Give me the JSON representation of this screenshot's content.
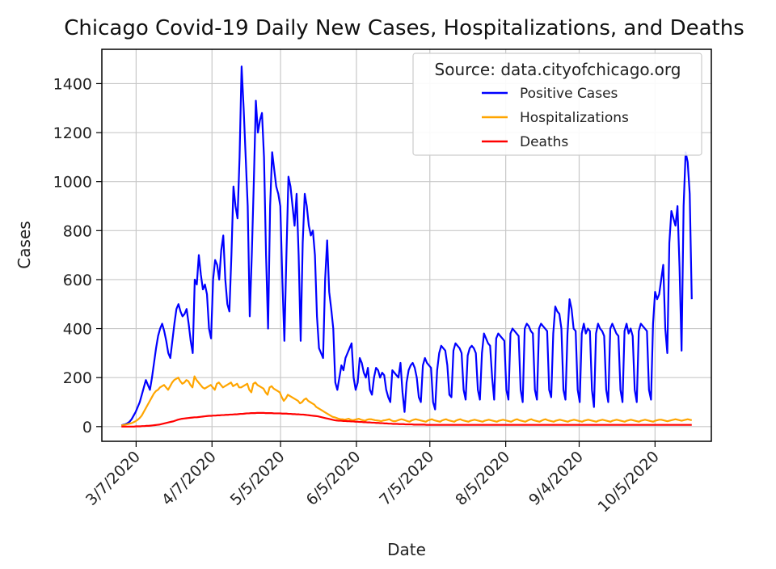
{
  "chart_data": {
    "type": "line",
    "title": "Chicago Covid-19 Daily New Cases, Hospitalizations, and Deaths",
    "xlabel": "Date",
    "ylabel": "Cases",
    "x_start": "3/1/2020",
    "x_end": "10/20/2020",
    "xlim": [
      "2/22/2020",
      "10/28/2020"
    ],
    "ylim": [
      -60,
      1540
    ],
    "xticks": [
      "3/7/2020",
      "4/7/2020",
      "5/5/2020",
      "6/5/2020",
      "7/5/2020",
      "8/5/2020",
      "9/4/2020",
      "10/5/2020"
    ],
    "yticks": [
      0,
      200,
      400,
      600,
      800,
      1000,
      1200,
      1400
    ],
    "grid": true,
    "legend": {
      "title": "Source: data.cityofchicago.org",
      "placement": "top-right"
    },
    "series": [
      {
        "name": "Positive Cases",
        "color": "#0000ff",
        "values": [
          5,
          8,
          10,
          14,
          20,
          30,
          45,
          60,
          80,
          100,
          130,
          160,
          190,
          170,
          150,
          200,
          260,
          320,
          370,
          400,
          420,
          390,
          350,
          300,
          280,
          350,
          420,
          480,
          500,
          470,
          450,
          460,
          480,
          420,
          350,
          300,
          600,
          580,
          700,
          620,
          560,
          580,
          540,
          400,
          360,
          600,
          680,
          660,
          600,
          720,
          780,
          600,
          500,
          470,
          700,
          980,
          900,
          850,
          1100,
          1470,
          1300,
          1100,
          900,
          450,
          700,
          1000,
          1330,
          1200,
          1250,
          1280,
          1100,
          700,
          400,
          900,
          1120,
          1050,
          980,
          950,
          900,
          600,
          350,
          700,
          1020,
          980,
          900,
          820,
          950,
          700,
          350,
          750,
          950,
          900,
          820,
          780,
          800,
          700,
          450,
          320,
          300,
          280,
          600,
          760,
          550,
          480,
          400,
          180,
          150,
          200,
          250,
          230,
          280,
          300,
          320,
          340,
          200,
          150,
          180,
          280,
          260,
          220,
          200,
          240,
          150,
          130,
          200,
          240,
          230,
          200,
          220,
          210,
          150,
          120,
          100,
          230,
          220,
          210,
          200,
          260,
          140,
          60,
          180,
          230,
          250,
          260,
          240,
          200,
          120,
          100,
          250,
          280,
          260,
          250,
          240,
          100,
          70,
          230,
          300,
          330,
          320,
          310,
          250,
          130,
          120,
          310,
          340,
          330,
          320,
          300,
          150,
          110,
          290,
          320,
          330,
          320,
          300,
          150,
          110,
          300,
          380,
          360,
          340,
          330,
          200,
          110,
          360,
          380,
          370,
          360,
          350,
          150,
          110,
          380,
          400,
          390,
          380,
          370,
          150,
          100,
          400,
          420,
          410,
          390,
          380,
          150,
          110,
          400,
          420,
          410,
          400,
          390,
          150,
          120,
          380,
          490,
          470,
          460,
          400,
          150,
          110,
          380,
          520,
          480,
          400,
          390,
          150,
          100,
          380,
          420,
          380,
          400,
          390,
          150,
          80,
          380,
          420,
          400,
          390,
          370,
          150,
          100,
          400,
          420,
          400,
          380,
          370,
          150,
          100,
          390,
          420,
          380,
          400,
          370,
          150,
          100,
          390,
          420,
          410,
          400,
          390,
          150,
          110,
          420,
          550,
          520,
          540,
          600,
          660,
          400,
          300,
          750,
          880,
          850,
          820,
          900,
          650,
          310,
          900,
          1120,
          1080,
          950,
          520
        ]
      },
      {
        "name": "Hospitalizations",
        "color": "#ffa500",
        "values": [
          5,
          6,
          8,
          10,
          12,
          14,
          18,
          22,
          28,
          35,
          45,
          60,
          75,
          90,
          105,
          120,
          135,
          145,
          150,
          160,
          165,
          170,
          160,
          150,
          165,
          180,
          190,
          195,
          200,
          185,
          175,
          180,
          190,
          185,
          170,
          160,
          205,
          190,
          180,
          170,
          160,
          155,
          160,
          165,
          170,
          160,
          150,
          175,
          180,
          170,
          160,
          165,
          170,
          175,
          180,
          165,
          170,
          175,
          160,
          160,
          165,
          170,
          175,
          150,
          140,
          175,
          180,
          170,
          165,
          160,
          155,
          140,
          130,
          160,
          165,
          155,
          150,
          145,
          140,
          120,
          105,
          115,
          130,
          125,
          120,
          115,
          110,
          105,
          95,
          100,
          110,
          115,
          105,
          100,
          95,
          90,
          80,
          75,
          70,
          65,
          60,
          55,
          50,
          45,
          40,
          38,
          35,
          32,
          30,
          30,
          28,
          30,
          32,
          28,
          26,
          28,
          30,
          32,
          28,
          26,
          24,
          28,
          30,
          30,
          28,
          26,
          25,
          24,
          22,
          25,
          26,
          28,
          30,
          25,
          22,
          22,
          25,
          28,
          30,
          28,
          25,
          22,
          20,
          25,
          28,
          30,
          28,
          26,
          24,
          22,
          20,
          25,
          28,
          30,
          26,
          24,
          22,
          20,
          25,
          28,
          30,
          26,
          24,
          22,
          20,
          25,
          28,
          30,
          26,
          24,
          22,
          20,
          24,
          26,
          28,
          26,
          24,
          22,
          20,
          24,
          26,
          28,
          26,
          24,
          22,
          20,
          24,
          26,
          28,
          26,
          24,
          22,
          20,
          24,
          28,
          30,
          26,
          24,
          22,
          20,
          24,
          28,
          30,
          26,
          24,
          22,
          20,
          24,
          28,
          30,
          26,
          24,
          22,
          20,
          24,
          26,
          28,
          26,
          24,
          22,
          20,
          24,
          26,
          28,
          26,
          24,
          22,
          20,
          24,
          26,
          28,
          26,
          24,
          22,
          20,
          24,
          26,
          28,
          26,
          24,
          22,
          20,
          24,
          26,
          28,
          26,
          24,
          22,
          20,
          24,
          26,
          28,
          26,
          24,
          22,
          20,
          24,
          26,
          28,
          26,
          24,
          22,
          20,
          24,
          26,
          28,
          28,
          26,
          24,
          22,
          24,
          26,
          28,
          30,
          28,
          26,
          24,
          26,
          28,
          30,
          28,
          26
        ]
      },
      {
        "name": "Deaths",
        "color": "#ff0000",
        "values": [
          0,
          0,
          0,
          0,
          0,
          0,
          0,
          1,
          1,
          1,
          2,
          2,
          3,
          3,
          4,
          5,
          6,
          7,
          8,
          10,
          12,
          14,
          16,
          18,
          20,
          22,
          25,
          28,
          30,
          32,
          33,
          34,
          35,
          36,
          37,
          38,
          38,
          39,
          40,
          41,
          42,
          43,
          44,
          44,
          45,
          45,
          46,
          46,
          47,
          47,
          48,
          48,
          49,
          49,
          50,
          50,
          51,
          52,
          52,
          53,
          54,
          54,
          55,
          55,
          55,
          56,
          56,
          56,
          56,
          55,
          55,
          55,
          55,
          54,
          54,
          54,
          54,
          53,
          53,
          53,
          52,
          52,
          51,
          51,
          50,
          50,
          49,
          49,
          48,
          47,
          46,
          45,
          44,
          43,
          42,
          40,
          38,
          36,
          34,
          32,
          30,
          28,
          26,
          25,
          24,
          24,
          23,
          23,
          22,
          22,
          21,
          21,
          20,
          20,
          19,
          19,
          18,
          18,
          17,
          17,
          16,
          16,
          15,
          15,
          14,
          14,
          13,
          13,
          12,
          12,
          11,
          11,
          11,
          10,
          10,
          10,
          9,
          9,
          9,
          9,
          8,
          8,
          8,
          8,
          8,
          8,
          7,
          7,
          7,
          7,
          7,
          7,
          7,
          7,
          7,
          7,
          7,
          7,
          7,
          7,
          7,
          7,
          7,
          7,
          7,
          7,
          7,
          7,
          7,
          7,
          7,
          7,
          7,
          7,
          7,
          7,
          7,
          7,
          7,
          7,
          7,
          7,
          7,
          7,
          7,
          7,
          7,
          7,
          7,
          7,
          7,
          7,
          7,
          7,
          7,
          7,
          7,
          7,
          7,
          7,
          7,
          7,
          7,
          7,
          7,
          7,
          7,
          7,
          7,
          7,
          7,
          7,
          7,
          7,
          7,
          7,
          7,
          7,
          7,
          7,
          7,
          7,
          7,
          7,
          7,
          7,
          7,
          7,
          7,
          7,
          7,
          7,
          7,
          7,
          7,
          7,
          7,
          7,
          7,
          7,
          7,
          7,
          7,
          7,
          7,
          7,
          7,
          7,
          7,
          7,
          7,
          7,
          7,
          7,
          7,
          7,
          7,
          7,
          7,
          7,
          7,
          7,
          7,
          7,
          7,
          7,
          7,
          7,
          7,
          7,
          7,
          7,
          7,
          7
        ]
      }
    ]
  }
}
